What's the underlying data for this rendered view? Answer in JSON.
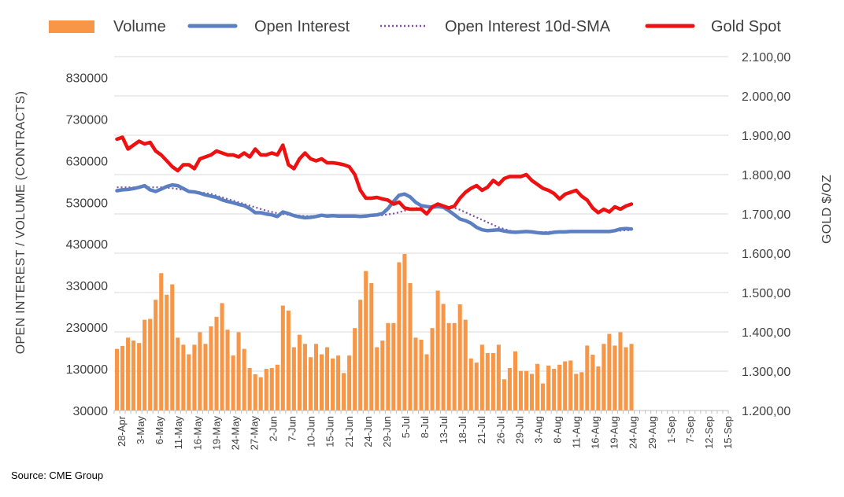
{
  "chart_data": {
    "type": "bar+line",
    "source": "Source: CME Group",
    "legend": {
      "position": "top",
      "items": [
        {
          "label": "Volume",
          "style": "bar",
          "color": "#F79646"
        },
        {
          "label": "Open Interest",
          "style": "solid",
          "color": "#5B7FC0"
        },
        {
          "label": "Open Interest 10d-SMA",
          "style": "dotted",
          "color": "#7F4FA8"
        },
        {
          "label": "Gold Spot",
          "style": "solid",
          "color": "#EE1111"
        }
      ]
    },
    "left_axis": {
      "label": "OPEN INTEREST / VOLUME (CONTRACTS)",
      "min": 30000,
      "max": 880000,
      "ticks": [
        "830000",
        "730000",
        "630000",
        "530000",
        "430000",
        "330000",
        "230000",
        "130000",
        "30000"
      ],
      "tick_values": [
        830000,
        730000,
        630000,
        530000,
        430000,
        330000,
        230000,
        130000,
        30000
      ]
    },
    "right_axis": {
      "label": "GOLD $/OZ",
      "min": 1200,
      "max": 2100,
      "ticks": [
        "2.100,00",
        "2.000,00",
        "1.900,00",
        "1.800,00",
        "1.700,00",
        "1.600,00",
        "1.500,00",
        "1.400,00",
        "1.300,00",
        "1.200,00"
      ],
      "tick_values": [
        2100,
        2000,
        1900,
        1800,
        1700,
        1600,
        1500,
        1400,
        1300,
        1200
      ]
    },
    "x_axis": {
      "total_slots": 111,
      "labels": [
        "28-Apr",
        "3-May",
        "6-May",
        "11-May",
        "16-May",
        "19-May",
        "24-May",
        "27-May",
        "2-Jun",
        "7-Jun",
        "10-Jun",
        "15-Jun",
        "21-Jun",
        "24-Jun",
        "29-Jun",
        "5-Jul",
        "8-Jul",
        "13-Jul",
        "18-Jul",
        "21-Jul",
        "26-Jul",
        "29-Jul",
        "3-Aug",
        "8-Aug",
        "11-Aug",
        "16-Aug",
        "19-Aug",
        "24-Aug",
        "29-Aug",
        "1-Sep",
        "7-Sep",
        "12-Sep",
        "15-Sep"
      ]
    },
    "series": [
      {
        "name": "Volume",
        "type": "bar",
        "color": "#F79646",
        "values": [
          178000,
          185000,
          205000,
          198000,
          192000,
          248000,
          250000,
          296000,
          360000,
          308000,
          333000,
          205000,
          188000,
          165000,
          188000,
          218000,
          190000,
          232000,
          255000,
          288000,
          224000,
          162000,
          218000,
          178000,
          132000,
          117000,
          110000,
          130000,
          132000,
          140000,
          282000,
          270000,
          182000,
          212000,
          190000,
          158000,
          190000,
          165000,
          182000,
          155000,
          162000,
          120000,
          162000,
          228000,
          296000,
          365000,
          336000,
          182000,
          198000,
          240000,
          240000,
          386000,
          406000,
          336000,
          205000,
          200000,
          165000,
          228000,
          318000,
          286000,
          240000,
          240000,
          285000,
          248000,
          155000,
          145000,
          188000,
          168000,
          168000,
          188000,
          105000,
          132000,
          172000,
          125000,
          125000,
          118000,
          142000,
          95000,
          138000,
          130000,
          140000,
          148000,
          150000,
          118000,
          122000,
          186000,
          164000,
          136000,
          190000,
          214000,
          186000,
          218000,
          182000,
          190000
        ]
      },
      {
        "name": "Open Interest",
        "type": "line",
        "color": "#5B7FC0",
        "values": [
          558000,
          560000,
          561000,
          563000,
          566000,
          570000,
          560000,
          556000,
          562000,
          568000,
          572000,
          570000,
          563000,
          556000,
          555000,
          552000,
          548000,
          545000,
          542000,
          536000,
          532000,
          529000,
          525000,
          522000,
          515000,
          505000,
          505000,
          502000,
          500000,
          496000,
          507000,
          503000,
          498000,
          495000,
          493000,
          494000,
          496000,
          499000,
          497000,
          498000,
          497000,
          497000,
          497000,
          497000,
          496000,
          497000,
          499000,
          500000,
          503000,
          515000,
          532000,
          547000,
          550000,
          543000,
          530000,
          522000,
          520000,
          518000,
          520000,
          518000,
          510000,
          500000,
          490000,
          486000,
          480000,
          470000,
          464000,
          462000,
          463000,
          464000,
          461000,
          459000,
          458000,
          459000,
          460000,
          459000,
          457000,
          456000,
          456000,
          458000,
          459000,
          459000,
          460000,
          460000,
          460000,
          460000,
          460000,
          460000,
          460000,
          460000,
          462000,
          466000,
          467000,
          466000
        ]
      },
      {
        "name": "Open Interest 10d-SMA",
        "type": "line",
        "style": "dotted",
        "color": "#7F4FA8",
        "values": [
          566000,
          566000,
          566000,
          566000,
          566000,
          566000,
          566000,
          566000,
          566000,
          565000,
          564000,
          562000,
          560000,
          558000,
          556000,
          554000,
          552000,
          550000,
          546000,
          542000,
          538000,
          534000,
          530000,
          526000,
          522000,
          518000,
          514000,
          510000,
          507000,
          504000,
          502000,
          500000,
          499000,
          498000,
          497000,
          497000,
          497000,
          497000,
          497000,
          497000,
          497000,
          497000,
          497000,
          497000,
          497000,
          497000,
          497000,
          498000,
          499000,
          501000,
          503000,
          506000,
          510000,
          513000,
          516000,
          518000,
          519000,
          520000,
          520000,
          520000,
          519000,
          516000,
          512000,
          506000,
          500000,
          494000,
          488000,
          482000,
          476000,
          470000,
          466000,
          462000,
          460000,
          459000,
          458000,
          458000,
          458000,
          458000,
          459000,
          459000,
          459000,
          459000,
          459000,
          459000,
          459000,
          459000,
          459000,
          460000,
          460000,
          460000,
          461000,
          462000,
          463000,
          463000
        ]
      },
      {
        "name": "Gold Spot",
        "type": "line",
        "color": "#EE1111",
        "axis": "right",
        "values": [
          1890,
          1895,
          1865,
          1875,
          1885,
          1878,
          1882,
          1860,
          1850,
          1835,
          1820,
          1810,
          1825,
          1825,
          1815,
          1840,
          1845,
          1850,
          1860,
          1855,
          1850,
          1850,
          1845,
          1855,
          1845,
          1865,
          1850,
          1850,
          1855,
          1850,
          1875,
          1825,
          1815,
          1840,
          1855,
          1840,
          1835,
          1840,
          1830,
          1830,
          1828,
          1825,
          1820,
          1800,
          1760,
          1740,
          1740,
          1742,
          1738,
          1735,
          1725,
          1730,
          1715,
          1712,
          1712,
          1712,
          1700,
          1718,
          1725,
          1720,
          1715,
          1720,
          1740,
          1755,
          1765,
          1772,
          1760,
          1768,
          1785,
          1775,
          1790,
          1795,
          1795,
          1795,
          1800,
          1785,
          1775,
          1765,
          1760,
          1752,
          1738,
          1750,
          1755,
          1760,
          1745,
          1735,
          1715,
          1703,
          1712,
          1705,
          1718,
          1712,
          1720,
          1725
        ]
      }
    ]
  }
}
